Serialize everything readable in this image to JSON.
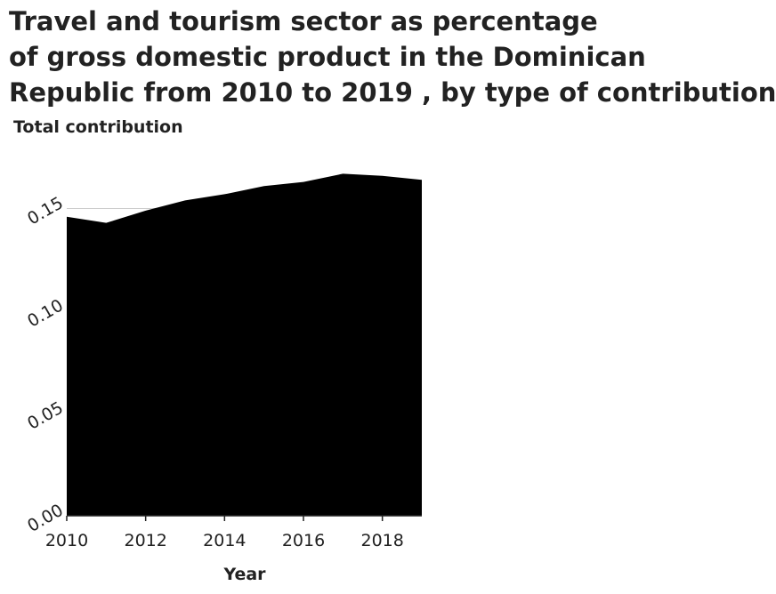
{
  "chart_data": {
    "type": "area",
    "title_lines": [
      "Travel and tourism sector as percentage",
      "of gross domestic product in the Dominican",
      "Republic from 2010 to 2019 , by type of contribution"
    ],
    "ylabel": "Total contribution",
    "xlabel": "Year",
    "x": [
      2010,
      2011,
      2012,
      2013,
      2014,
      2015,
      2016,
      2017,
      2018,
      2019
    ],
    "series": [
      {
        "values": [
          0.146,
          0.143,
          0.149,
          0.154,
          0.157,
          0.161,
          0.163,
          0.167,
          0.166,
          0.164
        ]
      }
    ],
    "xlim": [
      2010,
      2019
    ],
    "ylim": [
      0,
      0.165
    ],
    "xticks": [
      "2010",
      "2012",
      "2014",
      "2016",
      "2018"
    ],
    "yticks": [
      "0.00",
      "0.05",
      "0.10",
      "0.15"
    ],
    "grid": "horizontal",
    "fill_color": "#000000",
    "grid_color": "#cccccc"
  }
}
